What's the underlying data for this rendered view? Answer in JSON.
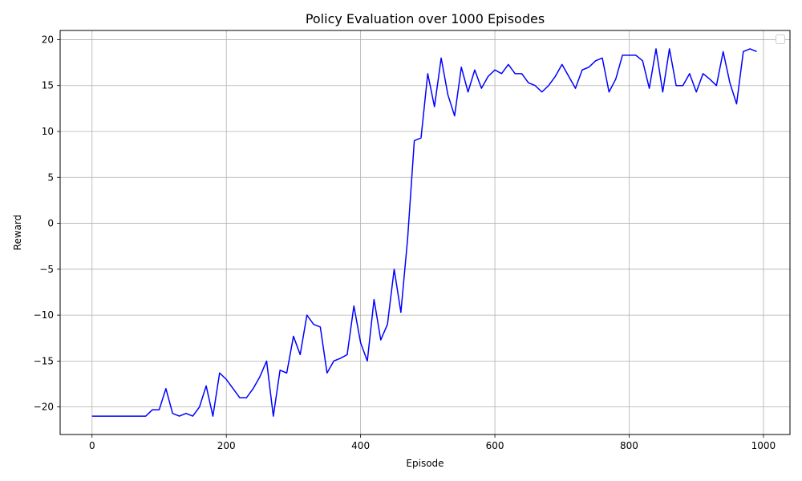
{
  "chart_data": {
    "type": "line",
    "title": "Policy Evaluation over 1000 Episodes",
    "xlabel": "Episode",
    "ylabel": "Reward",
    "xlim": [
      -47.5,
      1039.5
    ],
    "ylim": [
      -23.0,
      21.0
    ],
    "xticks": [
      0,
      200,
      400,
      600,
      800,
      1000
    ],
    "yticks": [
      -20,
      -15,
      -10,
      -5,
      0,
      5,
      10,
      15,
      20
    ],
    "xtick_labels": [
      "0",
      "200",
      "400",
      "600",
      "800",
      "1000"
    ],
    "ytick_labels": [
      "−20",
      "−15",
      "−10",
      "−5",
      "0",
      "5",
      "10",
      "15",
      "20"
    ],
    "grid": true,
    "legend": "top-right, empty",
    "series": [
      {
        "color": "#0000ff",
        "x": [
          0,
          10,
          20,
          30,
          40,
          50,
          60,
          70,
          80,
          90,
          100,
          110,
          120,
          130,
          140,
          150,
          160,
          170,
          180,
          190,
          200,
          210,
          220,
          230,
          240,
          250,
          260,
          270,
          280,
          290,
          300,
          310,
          320,
          330,
          340,
          350,
          360,
          370,
          380,
          390,
          400,
          410,
          420,
          430,
          440,
          450,
          460,
          470,
          480,
          490,
          500,
          510,
          520,
          530,
          540,
          550,
          560,
          570,
          580,
          590,
          600,
          610,
          620,
          630,
          640,
          650,
          660,
          670,
          680,
          690,
          700,
          710,
          720,
          730,
          740,
          750,
          760,
          770,
          780,
          790,
          800,
          810,
          820,
          830,
          840,
          850,
          860,
          870,
          880,
          890,
          900,
          910,
          920,
          930,
          940,
          950,
          960,
          970,
          980,
          990
        ],
        "y": [
          -21,
          -21,
          -21,
          -21,
          -21,
          -21,
          -21,
          -21,
          -21,
          -20.3,
          -20.3,
          -18,
          -20.7,
          -21,
          -20.7,
          -21,
          -20,
          -17.7,
          -21,
          -16.3,
          -17,
          -18,
          -19,
          -19,
          -18,
          -16.7,
          -15,
          -21,
          -16,
          -16.3,
          -12.3,
          -14.3,
          -10,
          -11,
          -11.3,
          -16.3,
          -15,
          -14.7,
          -14.3,
          -9,
          -13,
          -15,
          -8.3,
          -12.7,
          -11,
          -5,
          -9.7,
          -1.7,
          9,
          9.3,
          16.3,
          12.7,
          18,
          14,
          11.7,
          17,
          14.3,
          16.7,
          14.7,
          16,
          16.7,
          16.3,
          17.3,
          16.3,
          16.3,
          15.3,
          15,
          14.3,
          15,
          16,
          17.3,
          16,
          14.7,
          16.7,
          17,
          17.7,
          18,
          14.3,
          15.7,
          18.3,
          18.3,
          18.3,
          17.7,
          14.7,
          19,
          14.3,
          19,
          15,
          15,
          16.3,
          14.3,
          16.3,
          15.7,
          15,
          18.7,
          15.3,
          13,
          18.7,
          19,
          18.7
        ]
      }
    ]
  }
}
